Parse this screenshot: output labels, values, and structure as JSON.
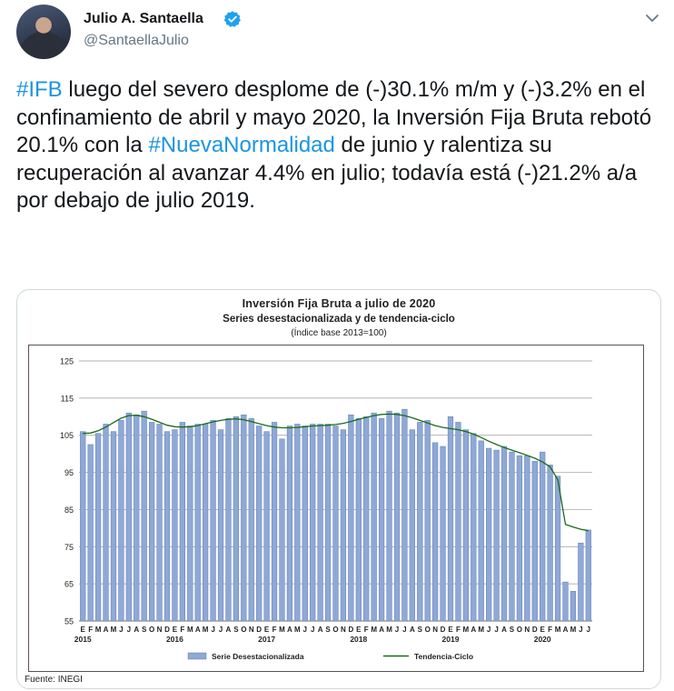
{
  "author": {
    "name": "Julio A. Santaella",
    "handle": "@SantaellaJulio",
    "verified": true
  },
  "tweet": {
    "hashtag1": "#IFB",
    "text1": " luego del severo desplome de (-)30.1% m/m y (-)3.2% en el confinamiento de abril y mayo 2020, la Inversión Fija Bruta rebotó 20.1% con la ",
    "hashtag2": "#NuevaNormalidad",
    "text2": " de junio y  ralentiza su recuperación al avanzar 4.4% en julio; todavía está (-)21.2% a/a por debajo de julio 2019."
  },
  "card": {
    "title": "Inversión Fija Bruta a julio de 2020",
    "subtitle": "Series desestacionalizada y de tendencia-ciclo",
    "note": "(Índice base 2013=100)",
    "source": "Fuente: INEGI"
  },
  "colors": {
    "bar": "#8fa8d6",
    "bar_edge": "#5f7fb8",
    "trend": "#1a6a1a",
    "link": "#1b95e0"
  },
  "chart_data": {
    "type": "bar",
    "ylim": [
      55,
      125
    ],
    "yticks": [
      55,
      65,
      75,
      85,
      95,
      105,
      115,
      125
    ],
    "grid": true,
    "legend_position": "bottom",
    "month_letters": [
      "E",
      "F",
      "M",
      "A",
      "M",
      "J",
      "J",
      "A",
      "S",
      "O",
      "N",
      "D"
    ],
    "years": [
      "2015",
      "2016",
      "2017",
      "2018",
      "2019",
      "2020"
    ],
    "series": [
      {
        "name": "Serie Desestacionalizada",
        "kind": "bar",
        "values": [
          106.0,
          102.5,
          105.5,
          108.0,
          106.0,
          109.0,
          111.0,
          110.5,
          111.5,
          108.5,
          108.0,
          106.0,
          106.5,
          108.5,
          107.5,
          108.0,
          108.0,
          109.0,
          106.5,
          109.5,
          110.0,
          110.5,
          109.5,
          107.5,
          106.0,
          108.5,
          104.0,
          107.5,
          108.0,
          107.5,
          108.0,
          108.0,
          108.0,
          107.5,
          106.5,
          110.5,
          109.5,
          110.0,
          111.0,
          109.5,
          111.5,
          111.0,
          112.0,
          106.5,
          108.5,
          109.0,
          103.0,
          102.0,
          110.0,
          108.5,
          106.5,
          105.5,
          103.5,
          101.5,
          101.0,
          102.0,
          100.5,
          99.5,
          99.5,
          98.0,
          100.5,
          97.0,
          94.0,
          65.5,
          63.0,
          76.0,
          79.5
        ]
      },
      {
        "name": "Tendencia-Ciclo",
        "kind": "line",
        "values": [
          105.5,
          105.6,
          106.2,
          107.2,
          108.4,
          109.6,
          110.3,
          110.4,
          110.0,
          109.3,
          108.5,
          107.7,
          107.3,
          107.2,
          107.3,
          107.6,
          108.1,
          108.6,
          109.0,
          109.3,
          109.4,
          109.2,
          108.7,
          108.1,
          107.6,
          107.2,
          107.0,
          107.0,
          107.1,
          107.3,
          107.5,
          107.6,
          107.7,
          107.9,
          108.2,
          108.7,
          109.3,
          109.8,
          110.3,
          110.6,
          110.7,
          110.6,
          110.3,
          109.7,
          109.0,
          108.3,
          107.6,
          107.1,
          106.8,
          106.5,
          106.0,
          105.3,
          104.4,
          103.4,
          102.5,
          101.7,
          101.0,
          100.3,
          99.6,
          98.8,
          97.8,
          96.5,
          93.0,
          81.0,
          80.3,
          79.7,
          79.3
        ]
      }
    ]
  }
}
